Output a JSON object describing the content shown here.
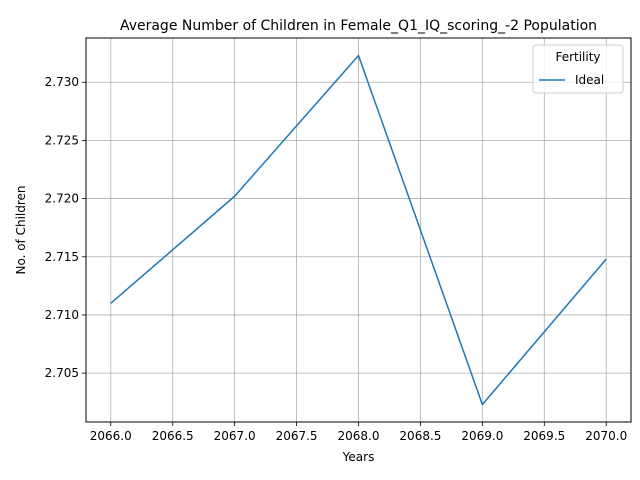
{
  "chart_data": {
    "type": "line",
    "title": "Average Number of Children in Female_Q1_IQ_scoring_-2 Population",
    "xlabel": "Years",
    "ylabel": "No. of Children",
    "x": [
      2066,
      2067,
      2068,
      2069,
      2070
    ],
    "series": [
      {
        "name": "Ideal",
        "color": "#1f77b4",
        "values": [
          2.711,
          2.7202,
          2.7323,
          2.7023,
          2.7148
        ]
      }
    ],
    "xlim": [
      2065.8,
      2070.2
    ],
    "ylim": [
      2.7008,
      2.7338
    ],
    "xticks": [
      2066.0,
      2066.5,
      2067.0,
      2067.5,
      2068.0,
      2068.5,
      2069.0,
      2069.5,
      2070.0
    ],
    "xtick_labels": [
      "2066.0",
      "2066.5",
      "2067.0",
      "2067.5",
      "2068.0",
      "2068.5",
      "2069.0",
      "2069.5",
      "2070.0"
    ],
    "yticks": [
      2.705,
      2.71,
      2.715,
      2.72,
      2.725,
      2.73
    ],
    "ytick_labels": [
      "2.705",
      "2.710",
      "2.715",
      "2.720",
      "2.725",
      "2.730"
    ],
    "grid": true,
    "legend": {
      "title": "Fertility",
      "placement": "top-right"
    }
  }
}
